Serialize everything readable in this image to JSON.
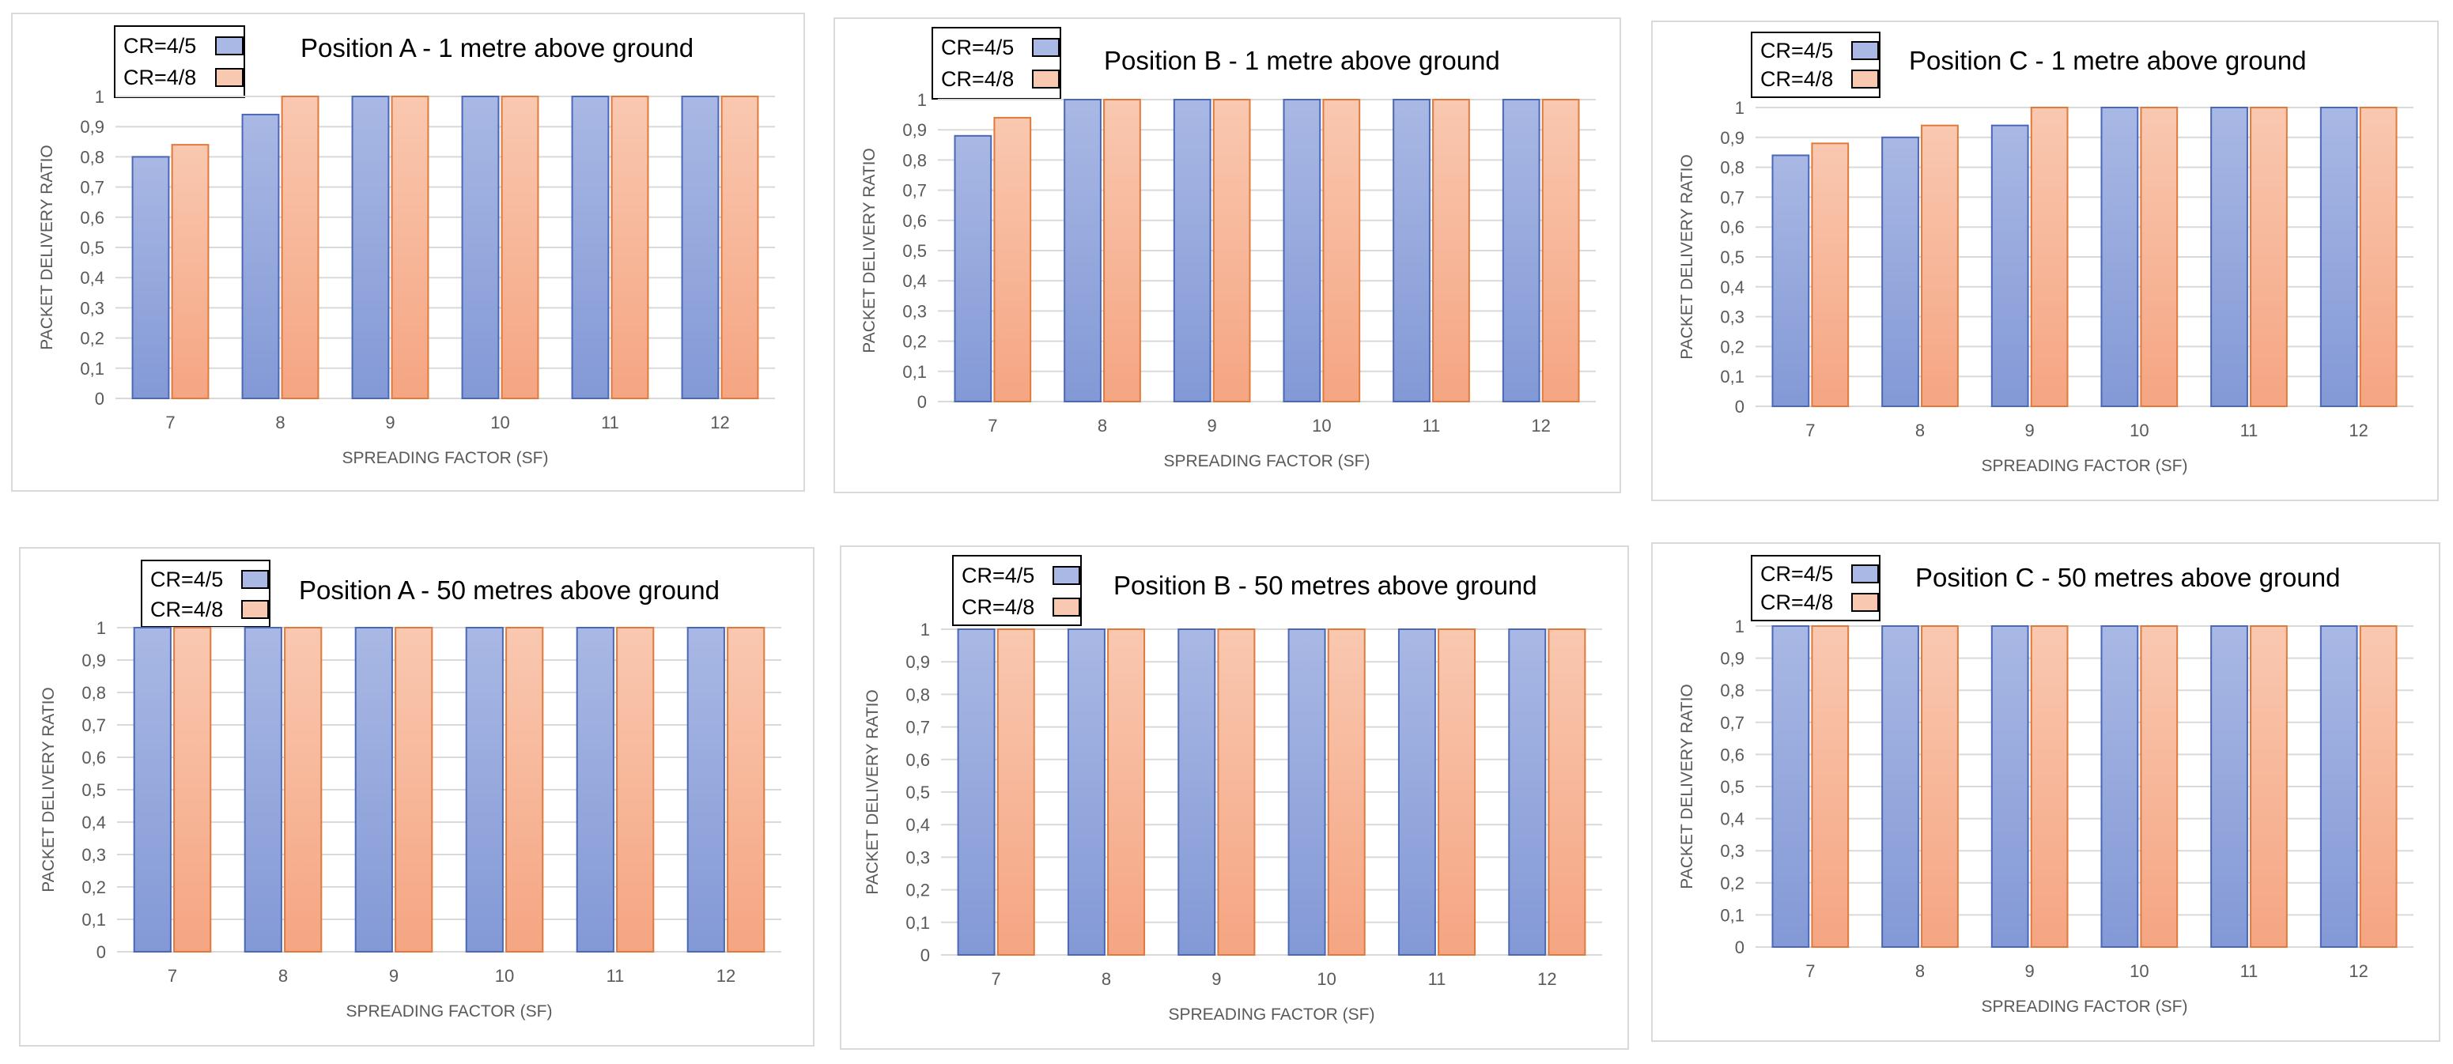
{
  "figure": {
    "series_names": [
      "CR=4/5",
      "CR=4/8"
    ],
    "colors": {
      "cr45_top": "#a9b8e4",
      "cr45_bottom": "#8399d6",
      "cr45_border": "#4a67b8",
      "cr48_top": "#f9c8b0",
      "cr48_bottom": "#f5a582",
      "cr48_border": "#e07a3c",
      "grid": "#d9d9d9",
      "tick_text": "#595959"
    }
  },
  "chart_data": [
    {
      "type": "bar",
      "title": "Position A - 1 metre above ground",
      "xlabel": "SPREADING FACTOR (SF)",
      "ylabel": "PACKET DELIVERY RATIO",
      "categories": [
        "7",
        "8",
        "9",
        "10",
        "11",
        "12"
      ],
      "ylim": [
        0,
        1
      ],
      "yticks": [
        "0",
        "0,1",
        "0,2",
        "0,3",
        "0,4",
        "0,5",
        "0,6",
        "0,7",
        "0,8",
        "0,9",
        "1"
      ],
      "series": [
        {
          "name": "CR=4/5",
          "values": [
            0.8,
            0.94,
            1,
            1,
            1,
            1
          ]
        },
        {
          "name": "CR=4/8",
          "values": [
            0.84,
            1,
            1,
            1,
            1,
            1
          ]
        }
      ],
      "legend": "top-left"
    },
    {
      "type": "bar",
      "title": "Position B - 1 metre above ground",
      "xlabel": "SPREADING FACTOR (SF)",
      "ylabel": "PACKET DELIVERY RATIO",
      "categories": [
        "7",
        "8",
        "9",
        "10",
        "11",
        "12"
      ],
      "ylim": [
        0,
        1
      ],
      "yticks": [
        "0",
        "0,1",
        "0,2",
        "0,3",
        "0,4",
        "0,5",
        "0,6",
        "0,7",
        "0,8",
        "0,9",
        "1"
      ],
      "series": [
        {
          "name": "CR=4/5",
          "values": [
            0.88,
            1,
            1,
            1,
            1,
            1
          ]
        },
        {
          "name": "CR=4/8",
          "values": [
            0.94,
            1,
            1,
            1,
            1,
            1
          ]
        }
      ],
      "legend": "top-left"
    },
    {
      "type": "bar",
      "title": "Position C - 1 metre above ground",
      "xlabel": "SPREADING FACTOR (SF)",
      "ylabel": "PACKET DELIVERY RATIO",
      "categories": [
        "7",
        "8",
        "9",
        "10",
        "11",
        "12"
      ],
      "ylim": [
        0,
        1
      ],
      "yticks": [
        "0",
        "0,1",
        "0,2",
        "0,3",
        "0,4",
        "0,5",
        "0,6",
        "0,7",
        "0,8",
        "0,9",
        "1"
      ],
      "series": [
        {
          "name": "CR=4/5",
          "values": [
            0.84,
            0.9,
            0.94,
            1,
            1,
            1
          ]
        },
        {
          "name": "CR=4/8",
          "values": [
            0.88,
            0.94,
            1,
            1,
            1,
            1
          ]
        }
      ],
      "legend": "top-left"
    },
    {
      "type": "bar",
      "title": "Position A - 50 metres above ground",
      "xlabel": "SPREADING FACTOR (SF)",
      "ylabel": "PACKET DELIVERY RATIO",
      "categories": [
        "7",
        "8",
        "9",
        "10",
        "11",
        "12"
      ],
      "ylim": [
        0,
        1
      ],
      "yticks": [
        "0",
        "0,1",
        "0,2",
        "0,3",
        "0,4",
        "0,5",
        "0,6",
        "0,7",
        "0,8",
        "0,9",
        "1"
      ],
      "series": [
        {
          "name": "CR=4/5",
          "values": [
            1,
            1,
            1,
            1,
            1,
            1
          ]
        },
        {
          "name": "CR=4/8",
          "values": [
            1,
            1,
            1,
            1,
            1,
            1
          ]
        }
      ],
      "legend": "top-left"
    },
    {
      "type": "bar",
      "title": "Position B - 50 metres above ground",
      "xlabel": "SPREADING FACTOR (SF)",
      "ylabel": "PACKET DELIVERY RATIO",
      "categories": [
        "7",
        "8",
        "9",
        "10",
        "11",
        "12"
      ],
      "ylim": [
        0,
        1
      ],
      "yticks": [
        "0",
        "0,1",
        "0,2",
        "0,3",
        "0,4",
        "0,5",
        "0,6",
        "0,7",
        "0,8",
        "0,9",
        "1"
      ],
      "series": [
        {
          "name": "CR=4/5",
          "values": [
            1,
            1,
            1,
            1,
            1,
            1
          ]
        },
        {
          "name": "CR=4/8",
          "values": [
            1,
            1,
            1,
            1,
            1,
            1
          ]
        }
      ],
      "legend": "top-left"
    },
    {
      "type": "bar",
      "title": "Position C - 50 metres above ground",
      "xlabel": "SPREADING FACTOR (SF)",
      "ylabel": "PACKET DELIVERY RATIO",
      "categories": [
        "7",
        "8",
        "9",
        "10",
        "11",
        "12"
      ],
      "ylim": [
        0,
        1
      ],
      "yticks": [
        "0",
        "0,1",
        "0,2",
        "0,3",
        "0,4",
        "0,5",
        "0,6",
        "0,7",
        "0,8",
        "0,9",
        "1"
      ],
      "series": [
        {
          "name": "CR=4/5",
          "values": [
            1,
            1,
            1,
            1,
            1,
            1
          ]
        },
        {
          "name": "CR=4/8",
          "values": [
            1,
            1,
            1,
            1,
            1,
            1
          ]
        }
      ],
      "legend": "top-left"
    }
  ]
}
